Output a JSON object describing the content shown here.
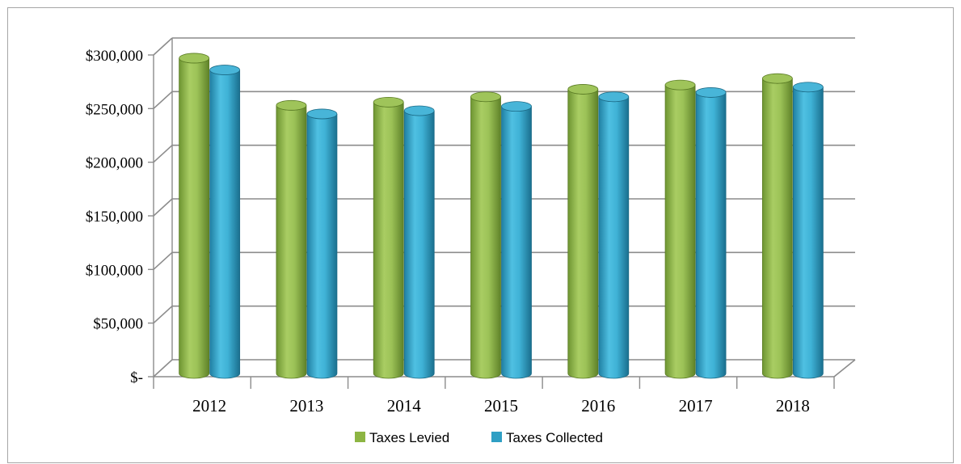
{
  "chart_data": {
    "type": "bar",
    "title": "",
    "xlabel": "",
    "ylabel": "",
    "categories": [
      "2012",
      "2013",
      "2014",
      "2015",
      "2016",
      "2017",
      "2018"
    ],
    "series": [
      {
        "name": "Taxes Levied",
        "color": "#8db543",
        "values": [
          294000,
          250000,
          253000,
          258000,
          265000,
          269000,
          275000
        ]
      },
      {
        "name": "Taxes Collected",
        "color": "#2f9fc4",
        "values": [
          283000,
          242000,
          245000,
          249000,
          258000,
          262000,
          267000
        ]
      }
    ],
    "ylim": [
      0,
      300000
    ],
    "y_ticks": [
      0,
      50000,
      100000,
      150000,
      200000,
      250000,
      300000
    ],
    "y_tick_labels": [
      "$-",
      "$50,000",
      "$100,000",
      "$150,000",
      "$200,000",
      "$250,000",
      "$300,000"
    ],
    "grid": true,
    "legend": "bottom",
    "style": "3d-cylinder"
  }
}
